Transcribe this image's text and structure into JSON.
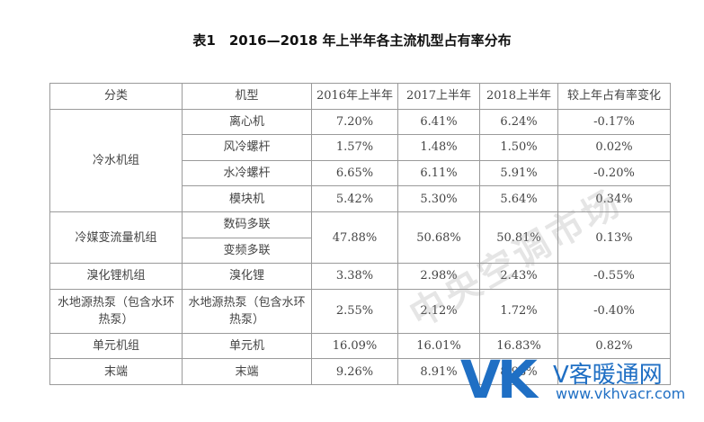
{
  "title": "表1　2016—2018 年上半年各主流机型占有率分布",
  "table": {
    "header": [
      "分类",
      "机型",
      "2016年上半年",
      "2017上半年",
      "2018上半年",
      "较上年占有率变化"
    ],
    "rows": [
      [
        "冷水机组",
        "离心机",
        "7.20%",
        "6.41%",
        "6.24%",
        "-0.17%"
      ],
      [
        "风冷螺杆",
        "1.57%",
        "1.48%",
        "1.50%",
        "0.02%"
      ],
      [
        "水冷螺杆",
        "6.65%",
        "6.11%",
        "5.91%",
        "-0.20%"
      ],
      [
        "模块机",
        "5.42%",
        "5.30%",
        "5.64%",
        "0.34%"
      ],
      [
        "冷媒变流量机组",
        "数码多联",
        "47.88%",
        "50.68%",
        "50.81%",
        "0.13%"
      ],
      [
        "变频多联"
      ],
      [
        "溴化锂机组",
        "溴化锂",
        "3.38%",
        "2.98%",
        "2.43%",
        "-0.55%"
      ],
      [
        "水地源热泵（包含水环热泵）",
        "水地源热泵（包含水环热泵）",
        "2.55%",
        "2.12%",
        "1.72%",
        "-0.40%"
      ],
      [
        "单元机组",
        "单元机",
        "16.09%",
        "16.01%",
        "16.83%",
        "0.82%"
      ],
      [
        "末端",
        "末端",
        "9.26%",
        "8.91%",
        "8.93%"
      ]
    ]
  },
  "watermark": {
    "center": "中央空调市场",
    "logo_mark": "VK",
    "logo_name": "V客暖通网",
    "logo_url": "www.vkhvacr.com"
  }
}
